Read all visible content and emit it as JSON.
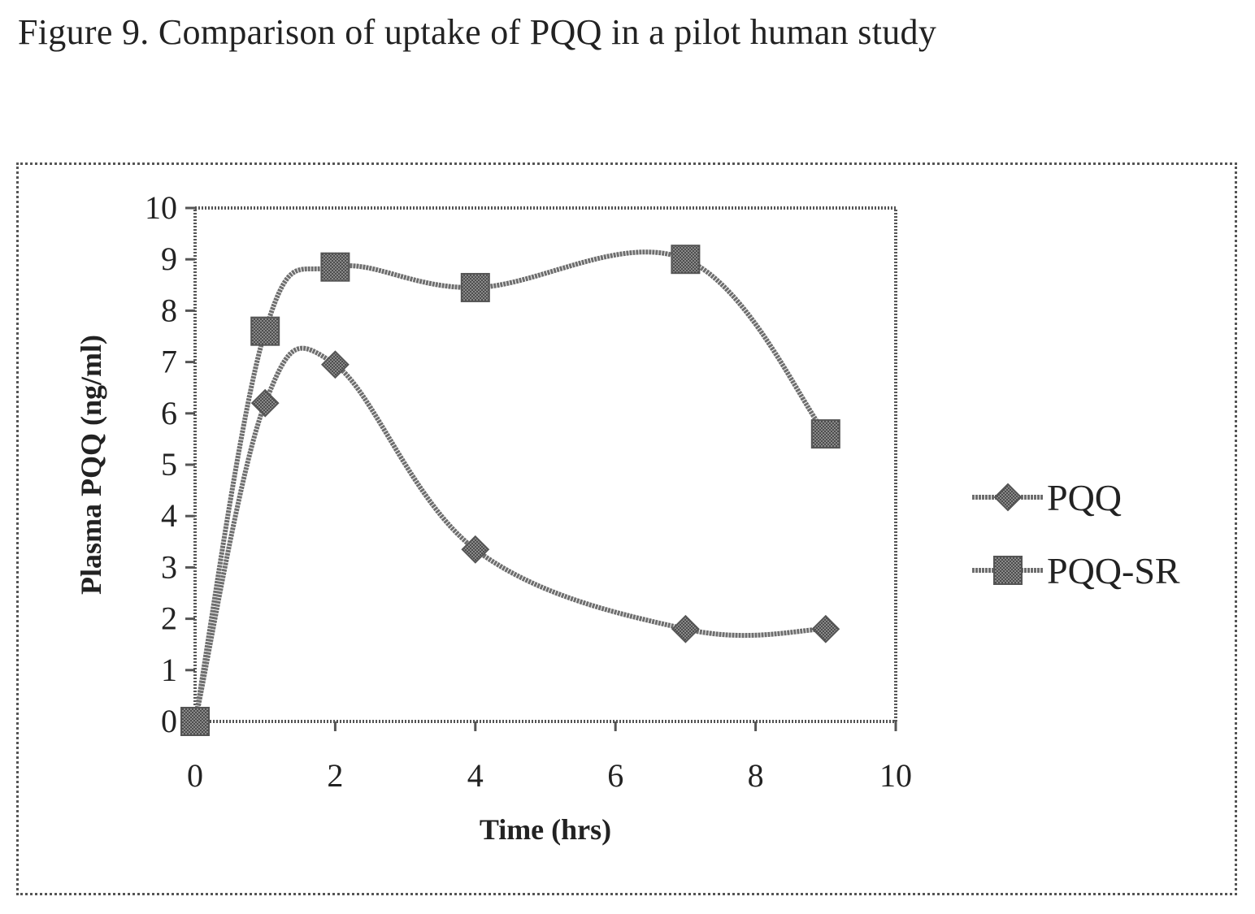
{
  "figure_title": "Figure 9.  Comparison of uptake of PQQ in a pilot human study",
  "colors": {
    "line": "#6e6e6e",
    "marker": "#555555",
    "frame": "#555555"
  },
  "chart_data": {
    "type": "line",
    "title": "",
    "xlabel": "Time (hrs)",
    "ylabel": "Plasma PQQ (ng/ml)",
    "xlim": [
      0,
      10
    ],
    "ylim": [
      0,
      10
    ],
    "xticks": [
      0,
      2,
      4,
      6,
      8,
      10
    ],
    "yticks": [
      0,
      1,
      2,
      3,
      4,
      5,
      6,
      7,
      8,
      9,
      10
    ],
    "grid": false,
    "legend_position": "right",
    "series": [
      {
        "name": "PQQ",
        "marker": "diamond",
        "x": [
          0,
          1,
          2,
          4,
          7,
          9
        ],
        "y": [
          0,
          6.2,
          6.95,
          3.35,
          1.8,
          1.8
        ]
      },
      {
        "name": "PQQ-SR",
        "marker": "square",
        "x": [
          0,
          1,
          2,
          4,
          7,
          9
        ],
        "y": [
          0,
          7.6,
          8.85,
          8.45,
          9.0,
          5.6
        ]
      }
    ]
  }
}
